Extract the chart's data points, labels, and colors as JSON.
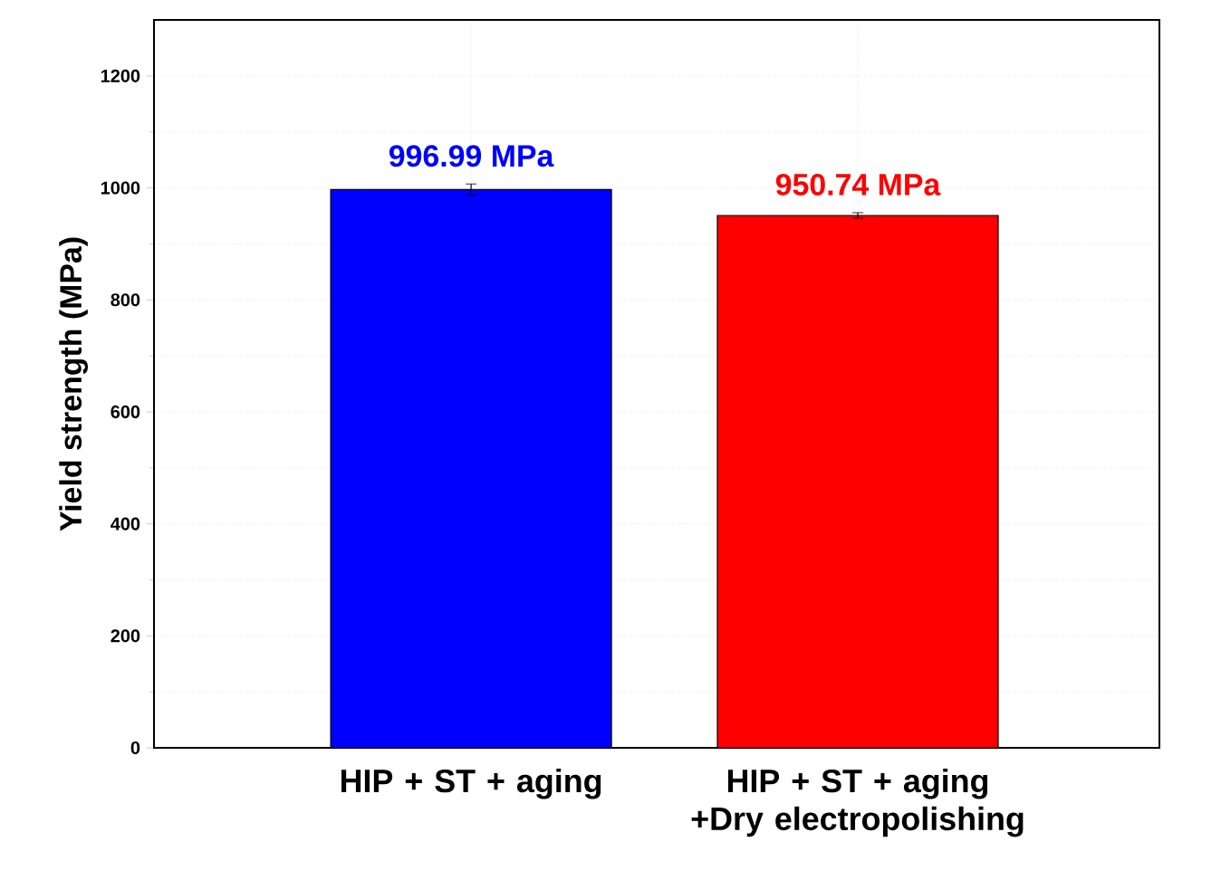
{
  "chart_data": {
    "type": "bar",
    "ylabel": "Yield strength (MPa)",
    "categories": [
      "HIP + ST + aging",
      "HIP + ST + aging +Dry electropolishing"
    ],
    "values": [
      996.99,
      950.74
    ],
    "colors": [
      "#0000ff",
      "#ff0000"
    ],
    "errors": [
      10,
      5
    ],
    "value_labels": [
      "996.99 MPa",
      "950.74 MPa"
    ],
    "ylim": [
      0,
      1300
    ],
    "yticks": [
      0,
      200,
      400,
      600,
      800,
      1000,
      1200
    ],
    "grid": true
  }
}
